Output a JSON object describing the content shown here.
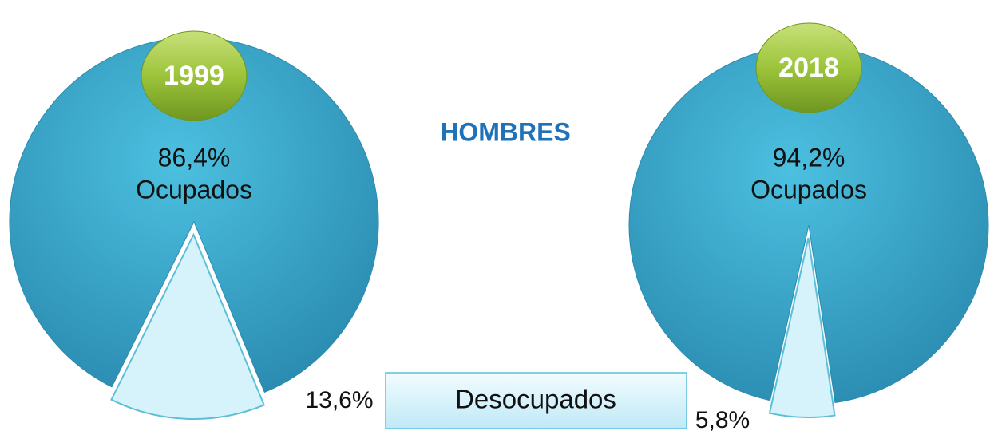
{
  "title": "HOMBRES",
  "legend": {
    "label": "Desocupados",
    "color": "#d6f3fb"
  },
  "chart_data": [
    {
      "type": "pie",
      "title": "1999",
      "center_label": "Ocupados",
      "values": [
        86.4,
        13.6
      ],
      "value_labels": [
        "86,4%",
        "13,6%"
      ],
      "colors": [
        "#36a7cb",
        "#d6f3fb"
      ]
    },
    {
      "type": "pie",
      "title": "2018",
      "center_label": "Ocupados",
      "values": [
        94.2,
        5.8
      ],
      "value_labels": [
        "94,2%",
        "5,8%"
      ],
      "colors": [
        "#36a7cb",
        "#d6f3fb"
      ]
    }
  ]
}
